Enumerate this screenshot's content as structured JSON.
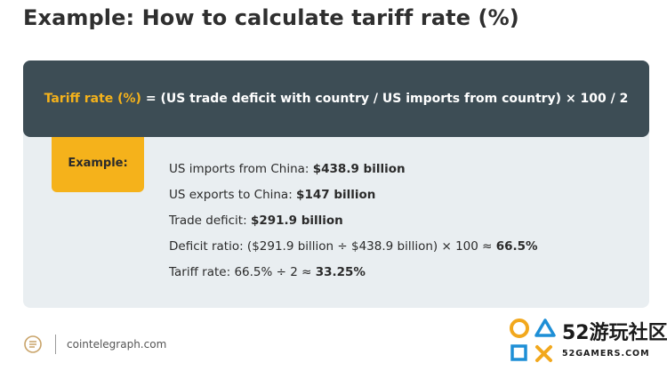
{
  "title": "Example: How to calculate tariff rate (%)",
  "formula": {
    "label": "Tariff rate (%)",
    "expression": " = (US trade deficit with country / US imports from country) × 100 / 2"
  },
  "example_tag": "Example:",
  "lines": [
    {
      "prefix": "US imports from China: ",
      "value": "$438.9 billion"
    },
    {
      "prefix": "US exports to China: ",
      "value": "$147 billion"
    },
    {
      "prefix": "Trade deficit: ",
      "value": "$291.9 billion"
    },
    {
      "prefix": "Deficit ratio: ($291.9 billion ÷ $438.9 billion) × 100 ≈ ",
      "value": "66.5%"
    },
    {
      "prefix": "Tariff rate: 66.5% ÷ 2 ≈ ",
      "value": "33.25%"
    }
  ],
  "footer": {
    "source": "cointelegraph.com",
    "logo_icon": "cointelegraph-logo-icon"
  },
  "watermark": {
    "brand": "52游玩社区",
    "site": "52GAMERS.COM",
    "icon": "game-controller-symbols-icon"
  },
  "colors": {
    "accent": "#f5b21b",
    "bar": "#3d4d55",
    "card": "#e9eef1"
  }
}
